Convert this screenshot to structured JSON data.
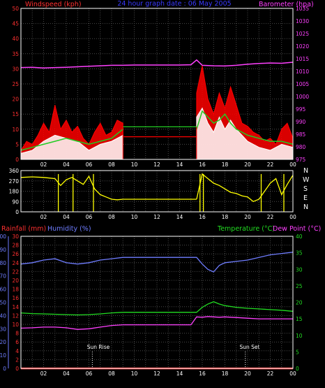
{
  "header": {
    "left": "Windspeed (kph)",
    "center": "24 hour graph date : 06 May 2005",
    "right": "Barometer (hpa)"
  },
  "panel3_header": {
    "rainfall": "Rainfall (mm)",
    "humidity": "Humidity (%)",
    "temperature": "Temperature (°C)",
    "dewpoint": "Dew Point (°C)"
  },
  "annotations": {
    "sunrise": "Sun Rise",
    "sunset": "Sun Set"
  },
  "direction_labels": [
    "N",
    "W",
    "S",
    "E",
    "N"
  ],
  "x_ticks": [
    "02",
    "04",
    "06",
    "08",
    "10",
    "12",
    "14",
    "16",
    "18",
    "20",
    "22",
    "00"
  ],
  "colors": {
    "background": "#000000",
    "grid": "#4a4a4a",
    "wind_axis": "#ff3030",
    "baro_axis": "#ff40ff",
    "direction": "#ffff00",
    "rain_axis": "#ff3030",
    "humidity": "#6f7dff",
    "temperature": "#22dd22",
    "dewpoint": "#ff40ff",
    "windspeed": "#ff0000",
    "gust": "#ffffff",
    "avg": "#22cc22"
  },
  "chart_data": [
    {
      "type": "area",
      "title": "24 hour graph date : 06 May 2005",
      "xlabel": "",
      "x_ticks": [
        "02",
        "04",
        "06",
        "08",
        "10",
        "12",
        "14",
        "16",
        "18",
        "20",
        "22",
        "00"
      ],
      "y_left": {
        "label": "Windspeed (kph)",
        "ticks": [
          0,
          5,
          10,
          15,
          20,
          25,
          30,
          35,
          40,
          45,
          50
        ],
        "range": [
          0,
          50
        ]
      },
      "y_right": {
        "label": "Barometer (hpa)",
        "ticks": [
          975,
          980,
          985,
          990,
          995,
          1000,
          1005,
          1010,
          1015,
          1020,
          1025,
          1030,
          1035
        ],
        "range": [
          975,
          1035
        ]
      },
      "series": [
        {
          "name": "Windspeed (kph)",
          "axis": "left",
          "color": "#ff0000",
          "x": [
            0,
            0.5,
            1,
            1.5,
            2,
            2.5,
            3,
            3.5,
            4,
            4.5,
            5,
            5.5,
            6,
            6.5,
            7,
            7.5,
            8,
            8.5,
            9,
            15.5,
            16,
            16.5,
            17,
            17.5,
            18,
            18.5,
            19,
            19.5,
            20,
            20.5,
            21,
            21.5,
            22,
            22.5,
            23,
            23.5,
            24
          ],
          "y": [
            3,
            6,
            5,
            8,
            12,
            9,
            18,
            10,
            13,
            9,
            11,
            7,
            5,
            9,
            12,
            8,
            9,
            13,
            12,
            22,
            31,
            20,
            15,
            22,
            17,
            24,
            18,
            12,
            11,
            9,
            8,
            6,
            7,
            5,
            10,
            12,
            7
          ]
        },
        {
          "name": "Gust",
          "axis": "left",
          "color": "#ffffff",
          "x": [
            0,
            1,
            2,
            3,
            4,
            5,
            6,
            7,
            8,
            9,
            15.5,
            16,
            16.5,
            17,
            17.5,
            18,
            18.5,
            19,
            19.5,
            20,
            21,
            22,
            23,
            24
          ],
          "y": [
            2,
            3,
            6,
            8,
            7,
            6,
            3,
            5,
            6,
            8,
            14,
            17,
            12,
            9,
            14,
            10,
            13,
            10,
            8,
            6,
            4,
            3,
            5,
            4
          ]
        },
        {
          "name": "Average",
          "axis": "left",
          "color": "#22cc22",
          "x": [
            0,
            1,
            2,
            3,
            4,
            5,
            6,
            7,
            8,
            9,
            15.5,
            16,
            16.5,
            17,
            17.5,
            18,
            18.5,
            19,
            20,
            21,
            22,
            23,
            24
          ],
          "y": [
            3,
            4,
            5,
            6,
            7,
            6,
            5,
            6,
            7,
            10,
            10,
            16,
            14,
            12,
            13,
            15,
            12,
            10,
            8,
            7,
            6,
            6,
            5
          ]
        },
        {
          "name": "Barometer (hpa)",
          "axis": "right",
          "color": "#ff40ff",
          "x": [
            0,
            1,
            2,
            3,
            4,
            5,
            6,
            7,
            8,
            9,
            10,
            11,
            12,
            13,
            14,
            15,
            15.5,
            16,
            17,
            18,
            19,
            20,
            21,
            22,
            23,
            24
          ],
          "y": [
            1011.5,
            1011.6,
            1011.3,
            1011.5,
            1011.6,
            1011.8,
            1012,
            1012.2,
            1012.4,
            1012.4,
            1012.5,
            1012.5,
            1012.5,
            1012.5,
            1012.5,
            1012.6,
            1014.5,
            1012.4,
            1012.2,
            1012.1,
            1012.4,
            1012.8,
            1013.1,
            1013.3,
            1013.2,
            1013.6
          ]
        }
      ]
    },
    {
      "type": "line",
      "title": "",
      "x_ticks": [
        "02",
        "04",
        "06",
        "08",
        "10",
        "12",
        "14",
        "16",
        "18",
        "20",
        "22",
        "00"
      ],
      "y_left": {
        "label": "",
        "ticks": [
          0,
          90,
          180,
          270,
          360
        ],
        "range": [
          0,
          360
        ]
      },
      "y_right": {
        "label": "",
        "ticks": [
          "N",
          "W",
          "S",
          "E",
          "N"
        ]
      },
      "series": [
        {
          "name": "Wind direction",
          "color": "#ffff00",
          "x": [
            0,
            1,
            2,
            3,
            3.5,
            4,
            4.5,
            5,
            5.5,
            6,
            6.5,
            7,
            7.5,
            8,
            8.5,
            9,
            15.5,
            16,
            16.5,
            17,
            17.5,
            18,
            18.5,
            19,
            19.5,
            20,
            20.5,
            21,
            21.5,
            22,
            22.5,
            23,
            23.5,
            24
          ],
          "y": [
            300,
            305,
            300,
            290,
            230,
            280,
            300,
            270,
            240,
            310,
            200,
            150,
            130,
            110,
            105,
            110,
            110,
            330,
            290,
            250,
            230,
            200,
            170,
            160,
            140,
            130,
            90,
            110,
            180,
            250,
            290,
            150,
            240,
            320
          ]
        }
      ]
    },
    {
      "type": "line",
      "title": "",
      "x_ticks": [
        "02",
        "04",
        "06",
        "08",
        "10",
        "12",
        "14",
        "16",
        "18",
        "20",
        "22",
        "00"
      ],
      "y_left": {
        "label": "Humidity (%)",
        "ticks": [
          0,
          10,
          20,
          30,
          40,
          50,
          60,
          70,
          80,
          90,
          100
        ],
        "range": [
          0,
          100
        ]
      },
      "y_left2": {
        "label": "Rainfall (mm)",
        "ticks": [
          0,
          2,
          4,
          6,
          8,
          10,
          12,
          14,
          16,
          18,
          20,
          22,
          24,
          26,
          28,
          30
        ],
        "range": [
          0,
          30
        ]
      },
      "y_right": {
        "label": "Temperature (°C)",
        "ticks": [
          0,
          5,
          10,
          15,
          20,
          25,
          30,
          35,
          40
        ],
        "range": [
          0,
          40
        ]
      },
      "series": [
        {
          "name": "Rainfall (mm)",
          "axis": "left2",
          "color": "#ff3030",
          "x": [
            0,
            24
          ],
          "y": [
            0,
            0
          ]
        },
        {
          "name": "Humidity (%)",
          "axis": "left",
          "color": "#6f7dff",
          "x": [
            0,
            1,
            2,
            3,
            4,
            5,
            6,
            7,
            8,
            9,
            10,
            11,
            12,
            13,
            14,
            15,
            15.5,
            16,
            16.5,
            17,
            17.5,
            18,
            19,
            20,
            21,
            22,
            23,
            24
          ],
          "y": [
            79,
            80,
            82,
            83,
            80,
            79,
            80,
            82,
            83,
            84,
            84,
            84,
            84,
            84,
            84,
            84,
            84,
            79,
            75,
            73,
            78,
            80,
            81,
            82,
            84,
            86,
            87,
            88
          ]
        },
        {
          "name": "Temperature (°C)",
          "axis": "right",
          "color": "#22dd22",
          "x": [
            0,
            1,
            2,
            3,
            4,
            5,
            6,
            7,
            8,
            9,
            10,
            11,
            12,
            13,
            14,
            15,
            15.5,
            16,
            16.5,
            17,
            17.5,
            18,
            19,
            20,
            21,
            22,
            23,
            24
          ],
          "y": [
            16.8,
            16.6,
            16.5,
            16.4,
            16.3,
            16.2,
            16.3,
            16.5,
            16.8,
            17,
            17,
            17,
            17,
            17,
            17,
            17,
            17,
            18.5,
            19.5,
            20.2,
            19.5,
            19,
            18.5,
            18.2,
            18,
            17.8,
            17.6,
            17.3
          ]
        },
        {
          "name": "Dew Point (°C)",
          "axis": "right",
          "color": "#ff40ff",
          "x": [
            0,
            1,
            2,
            3,
            4,
            5,
            6,
            7,
            8,
            9,
            10,
            11,
            12,
            13,
            14,
            15,
            15.5,
            16,
            16.5,
            17,
            17.5,
            18,
            19,
            20,
            21,
            22,
            23,
            24
          ],
          "y": [
            12.2,
            12.3,
            12.5,
            12.5,
            12.3,
            11.8,
            12,
            12.5,
            13,
            13.2,
            13.2,
            13.2,
            13.2,
            13.2,
            13.2,
            13.2,
            15.6,
            15.5,
            15.7,
            15.6,
            15.5,
            15.6,
            15.4,
            15.2,
            15,
            15,
            15,
            15
          ]
        }
      ]
    }
  ]
}
